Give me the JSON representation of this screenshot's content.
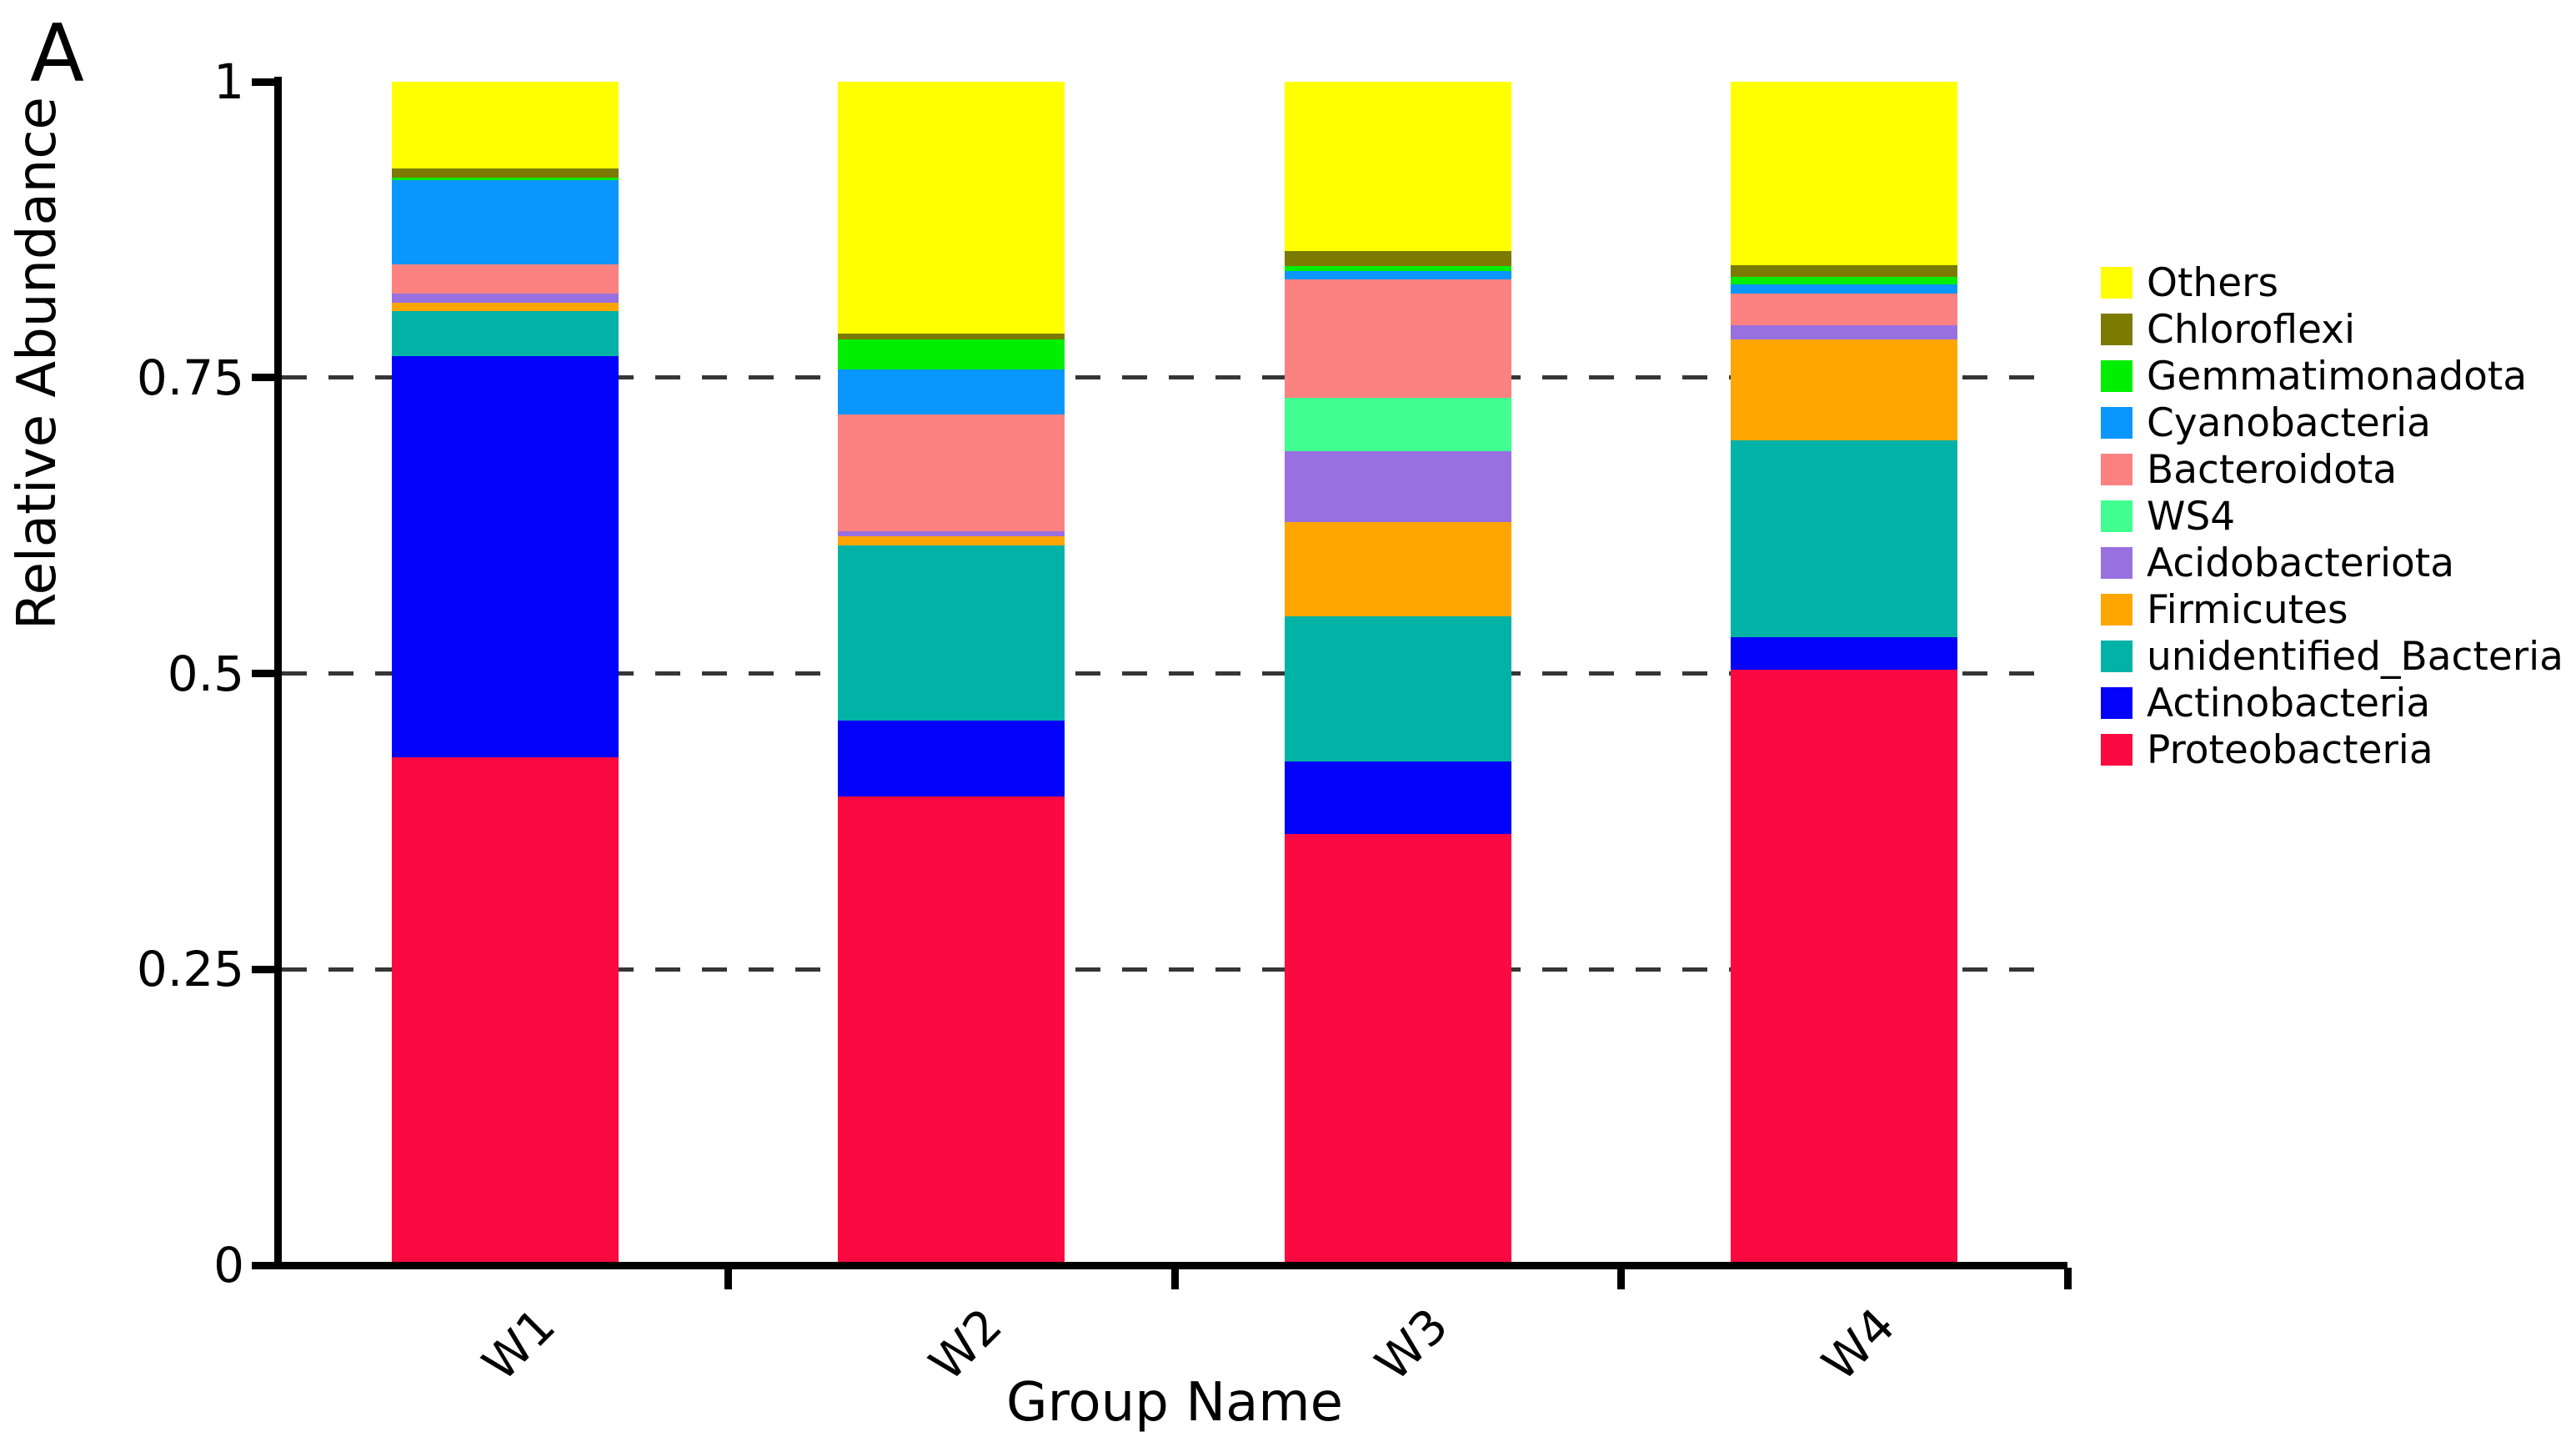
{
  "panel_label": "A",
  "background_color": "#FFFFFF",
  "axis_color": "#000000",
  "gridline_color": "#363636",
  "chart_data": {
    "type": "bar",
    "stacked": true,
    "title": "",
    "xlabel": "Group Name",
    "ylabel": "Relative Abundance",
    "ylim": [
      0,
      1
    ],
    "yticks": [
      0,
      0.25,
      0.5,
      0.75,
      1
    ],
    "ytick_labels": [
      "0",
      "0.25",
      "0.5",
      "0.75",
      "1"
    ],
    "gridlines_at": [
      0.25,
      0.5,
      0.75
    ],
    "grid_style": "dashed",
    "legend_position": "right",
    "categories": [
      "W1",
      "W2",
      "W3",
      "W4"
    ],
    "series": [
      {
        "name": "Proteobacteria",
        "color": "#FA0A40",
        "values": [
          0.429,
          0.396,
          0.364,
          0.503
        ]
      },
      {
        "name": "Actinobacteria",
        "color": "#0202FA",
        "values": [
          0.339,
          0.064,
          0.062,
          0.028
        ]
      },
      {
        "name": "unidentified_Bacteria",
        "color": "#00B3A6",
        "values": [
          0.038,
          0.148,
          0.122,
          0.166
        ]
      },
      {
        "name": "Firmicutes",
        "color": "#FFA500",
        "values": [
          0.007,
          0.008,
          0.08,
          0.085
        ]
      },
      {
        "name": "Acidobacteriota",
        "color": "#9970E0",
        "values": [
          0.008,
          0.004,
          0.06,
          0.012
        ]
      },
      {
        "name": "WS4",
        "color": "#40FE90",
        "values": [
          0.0,
          0.0,
          0.045,
          0.0
        ]
      },
      {
        "name": "Bacteroidota",
        "color": "#FB8281",
        "values": [
          0.025,
          0.099,
          0.1,
          0.027
        ]
      },
      {
        "name": "Cyanobacteria",
        "color": "#0997FF",
        "values": [
          0.071,
          0.038,
          0.007,
          0.008
        ]
      },
      {
        "name": "Gemmatimonadota",
        "color": "#00EF00",
        "values": [
          0.002,
          0.025,
          0.004,
          0.006
        ]
      },
      {
        "name": "Chloroflexi",
        "color": "#7A7B00",
        "values": [
          0.008,
          0.005,
          0.013,
          0.01
        ]
      },
      {
        "name": "Others",
        "color": "#FFFF00",
        "values": [
          0.073,
          0.213,
          0.143,
          0.155
        ]
      }
    ],
    "legend_order_top_to_bottom": [
      "Others",
      "Chloroflexi",
      "Gemmatimonadota",
      "Cyanobacteria",
      "Bacteroidota",
      "WS4",
      "Acidobacteriota",
      "Firmicutes",
      "unidentified_Bacteria",
      "Actinobacteria",
      "Proteobacteria"
    ]
  }
}
